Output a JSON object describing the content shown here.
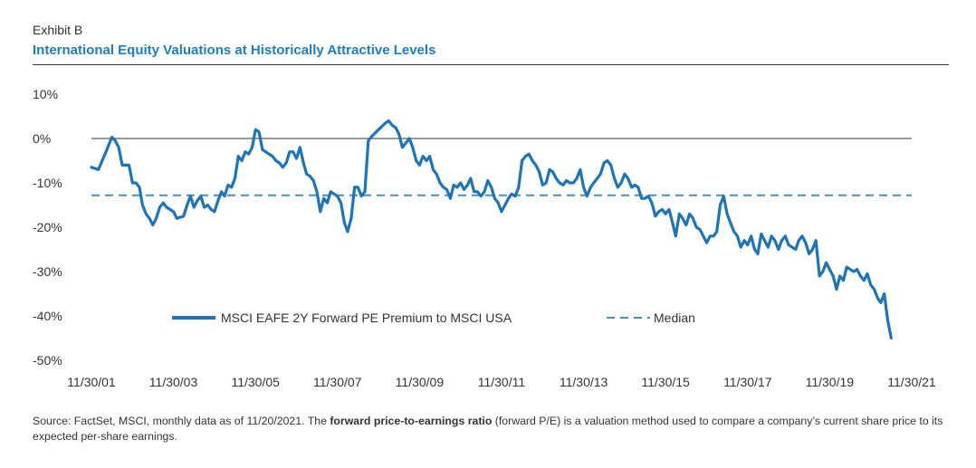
{
  "header": {
    "exhibit": "Exhibit B",
    "title": "International Equity Valuations at Historically Attractive Levels"
  },
  "footer": {
    "source_part1": "Source: FactSet, MSCI, monthly data as of 11/20/2021. The ",
    "source_bold": "forward price-to-earnings ratio",
    "source_part2": " (forward P/E) is a valuation method used to compare a company’s current share price to its expected per-share earnings."
  },
  "colors": {
    "series": "#1f74b8",
    "median": "#4a8fb5",
    "title": "#1f7cc0",
    "zero_line": "#333333"
  },
  "chart_data": {
    "type": "line",
    "title": "International Equity Valuations at Historically Attractive Levels",
    "x_axis": {
      "type": "date",
      "range": [
        "2001-11-30",
        "2021-11-30"
      ],
      "tick_values": [
        "2001-11-30",
        "2003-11-30",
        "2005-11-30",
        "2007-11-30",
        "2009-11-30",
        "2011-11-30",
        "2013-11-30",
        "2015-11-30",
        "2017-11-30",
        "2019-11-30",
        "2021-11-30"
      ],
      "tick_labels": [
        "11/30/01",
        "11/30/03",
        "11/30/05",
        "11/30/07",
        "11/30/09",
        "11/30/11",
        "11/30/13",
        "11/30/15",
        "11/30/17",
        "11/30/19",
        "11/30/21"
      ]
    },
    "y_axis": {
      "range": [
        -50,
        10
      ],
      "tick_values": [
        10,
        0,
        -10,
        -20,
        -30,
        -40,
        -50
      ],
      "tick_labels": [
        "10%",
        "0%",
        "-10%",
        "-20%",
        "-30%",
        "-40%",
        "-50%"
      ]
    },
    "grid": false,
    "legend_position": "bottom-center",
    "series": [
      {
        "name": "MSCI EAFE 2Y Forward PE Premium to MSCI USA",
        "style": "solid",
        "points": [
          [
            "2001-11-30",
            -6.5
          ],
          [
            "2002-01-31",
            -7
          ],
          [
            "2002-03-31",
            -3.5
          ],
          [
            "2002-05-31",
            0.3
          ],
          [
            "2002-06-30",
            -0.5
          ],
          [
            "2002-07-31",
            -2
          ],
          [
            "2002-08-31",
            -6
          ],
          [
            "2002-10-31",
            -6
          ],
          [
            "2002-11-30",
            -10
          ],
          [
            "2002-12-31",
            -10
          ],
          [
            "2003-01-31",
            -11
          ],
          [
            "2003-02-28",
            -15
          ],
          [
            "2003-03-31",
            -17
          ],
          [
            "2003-04-30",
            -18
          ],
          [
            "2003-05-31",
            -19.5
          ],
          [
            "2003-06-30",
            -18
          ],
          [
            "2003-07-31",
            -15.5
          ],
          [
            "2003-08-31",
            -14.5
          ],
          [
            "2003-09-30",
            -15.5
          ],
          [
            "2003-10-31",
            -16
          ],
          [
            "2003-11-30",
            -16.5
          ],
          [
            "2003-12-31",
            -18
          ],
          [
            "2004-02-28",
            -17.5
          ],
          [
            "2004-03-31",
            -15
          ],
          [
            "2004-04-30",
            -13
          ],
          [
            "2004-05-31",
            -15.5
          ],
          [
            "2004-06-30",
            -14
          ],
          [
            "2004-07-31",
            -13
          ],
          [
            "2004-08-31",
            -15.5
          ],
          [
            "2004-09-30",
            -15
          ],
          [
            "2004-10-31",
            -16
          ],
          [
            "2004-11-30",
            -16.5
          ],
          [
            "2004-12-31",
            -14
          ],
          [
            "2005-01-31",
            -12
          ],
          [
            "2005-02-28",
            -13
          ],
          [
            "2005-03-31",
            -10.5
          ],
          [
            "2005-04-30",
            -11
          ],
          [
            "2005-05-31",
            -9
          ],
          [
            "2005-06-30",
            -4
          ],
          [
            "2005-07-31",
            -5
          ],
          [
            "2005-08-31",
            -3
          ],
          [
            "2005-09-30",
            -3.5
          ],
          [
            "2005-10-31",
            -2
          ],
          [
            "2005-11-30",
            2
          ],
          [
            "2005-12-31",
            1.5
          ],
          [
            "2006-01-31",
            -2.5
          ],
          [
            "2006-02-28",
            -3
          ],
          [
            "2006-04-30",
            -4
          ],
          [
            "2006-05-31",
            -5
          ],
          [
            "2006-06-30",
            -5.5
          ],
          [
            "2006-07-31",
            -6.5
          ],
          [
            "2006-08-31",
            -5.5
          ],
          [
            "2006-09-30",
            -3
          ],
          [
            "2006-10-31",
            -3
          ],
          [
            "2006-11-30",
            -4.5
          ],
          [
            "2006-12-31",
            -2
          ],
          [
            "2007-01-31",
            -5.5
          ],
          [
            "2007-02-28",
            -8
          ],
          [
            "2007-03-31",
            -8.5
          ],
          [
            "2007-04-30",
            -9.5
          ],
          [
            "2007-05-31",
            -12
          ],
          [
            "2007-06-30",
            -16.5
          ],
          [
            "2007-07-31",
            -13.5
          ],
          [
            "2007-08-31",
            -14.5
          ],
          [
            "2007-09-30",
            -12
          ],
          [
            "2007-10-31",
            -12.5
          ],
          [
            "2007-11-30",
            -13
          ],
          [
            "2007-12-31",
            -14.5
          ],
          [
            "2008-01-31",
            -19
          ],
          [
            "2008-02-28",
            -21
          ],
          [
            "2008-03-31",
            -18
          ],
          [
            "2008-04-30",
            -11
          ],
          [
            "2008-05-31",
            -11
          ],
          [
            "2008-06-30",
            -13
          ],
          [
            "2008-07-31",
            -12
          ],
          [
            "2008-08-31",
            -0.5
          ],
          [
            "2008-09-30",
            0.5
          ],
          [
            "2008-11-30",
            2
          ],
          [
            "2009-01-31",
            3.5
          ],
          [
            "2009-02-28",
            4
          ],
          [
            "2009-03-31",
            3
          ],
          [
            "2009-04-30",
            2.5
          ],
          [
            "2009-05-31",
            1
          ],
          [
            "2009-06-30",
            -2
          ],
          [
            "2009-07-31",
            -1
          ],
          [
            "2009-08-31",
            0
          ],
          [
            "2009-09-30",
            -2
          ],
          [
            "2009-10-31",
            -5
          ],
          [
            "2009-11-30",
            -6
          ],
          [
            "2009-12-31",
            -4
          ],
          [
            "2010-01-31",
            -5
          ],
          [
            "2010-02-28",
            -4
          ],
          [
            "2010-03-31",
            -7
          ],
          [
            "2010-04-30",
            -8
          ],
          [
            "2010-05-31",
            -10
          ],
          [
            "2010-06-30",
            -11
          ],
          [
            "2010-07-31",
            -11.5
          ],
          [
            "2010-08-31",
            -13.5
          ],
          [
            "2010-09-30",
            -10.5
          ],
          [
            "2010-10-31",
            -11
          ],
          [
            "2010-11-30",
            -10
          ],
          [
            "2010-12-31",
            -11.5
          ],
          [
            "2011-01-31",
            -10.5
          ],
          [
            "2011-02-28",
            -9
          ],
          [
            "2011-03-31",
            -12
          ],
          [
            "2011-04-30",
            -12
          ],
          [
            "2011-05-31",
            -13
          ],
          [
            "2011-06-30",
            -12
          ],
          [
            "2011-07-31",
            -9.5
          ],
          [
            "2011-08-31",
            -11
          ],
          [
            "2011-09-30",
            -13.5
          ],
          [
            "2011-10-31",
            -14.5
          ],
          [
            "2011-11-30",
            -16.5
          ],
          [
            "2011-12-31",
            -15
          ],
          [
            "2012-01-31",
            -13.5
          ],
          [
            "2012-02-28",
            -12.5
          ],
          [
            "2012-03-31",
            -13
          ],
          [
            "2012-04-30",
            -11
          ],
          [
            "2012-05-31",
            -5
          ],
          [
            "2012-06-30",
            -4
          ],
          [
            "2012-07-31",
            -3.5
          ],
          [
            "2012-08-31",
            -5
          ],
          [
            "2012-09-30",
            -6
          ],
          [
            "2012-10-31",
            -7.5
          ],
          [
            "2012-11-30",
            -10.5
          ],
          [
            "2012-12-31",
            -10
          ],
          [
            "2013-01-31",
            -7
          ],
          [
            "2013-02-28",
            -7.5
          ],
          [
            "2013-03-31",
            -9
          ],
          [
            "2013-04-30",
            -10
          ],
          [
            "2013-05-31",
            -10.5
          ],
          [
            "2013-06-30",
            -9.5
          ],
          [
            "2013-07-31",
            -10
          ],
          [
            "2013-08-31",
            -10
          ],
          [
            "2013-09-30",
            -9
          ],
          [
            "2013-10-31",
            -7
          ],
          [
            "2013-11-30",
            -11
          ],
          [
            "2013-12-31",
            -13
          ],
          [
            "2014-01-31",
            -11
          ],
          [
            "2014-02-28",
            -10
          ],
          [
            "2014-03-31",
            -9
          ],
          [
            "2014-04-30",
            -8
          ],
          [
            "2014-05-31",
            -5.5
          ],
          [
            "2014-06-30",
            -5
          ],
          [
            "2014-07-31",
            -6
          ],
          [
            "2014-08-31",
            -9
          ],
          [
            "2014-09-30",
            -11
          ],
          [
            "2014-10-31",
            -10
          ],
          [
            "2014-11-30",
            -8
          ],
          [
            "2014-12-31",
            -9
          ],
          [
            "2015-01-31",
            -11
          ],
          [
            "2015-02-28",
            -10.5
          ],
          [
            "2015-03-31",
            -11
          ],
          [
            "2015-04-30",
            -13.5
          ],
          [
            "2015-05-31",
            -13.5
          ],
          [
            "2015-06-30",
            -13
          ],
          [
            "2015-07-31",
            -14.5
          ],
          [
            "2015-08-31",
            -17.5
          ],
          [
            "2015-09-30",
            -16.5
          ],
          [
            "2015-10-31",
            -16
          ],
          [
            "2015-11-30",
            -17
          ],
          [
            "2015-12-31",
            -16
          ],
          [
            "2016-01-31",
            -19
          ],
          [
            "2016-02-28",
            -22
          ],
          [
            "2016-03-31",
            -17
          ],
          [
            "2016-04-30",
            -18
          ],
          [
            "2016-05-31",
            -19.5
          ],
          [
            "2016-06-30",
            -17
          ],
          [
            "2016-07-31",
            -18
          ],
          [
            "2016-08-31",
            -20
          ],
          [
            "2016-09-30",
            -20.5
          ],
          [
            "2016-10-31",
            -22
          ],
          [
            "2016-11-30",
            -23.5
          ],
          [
            "2016-12-31",
            -22
          ],
          [
            "2017-01-31",
            -22
          ],
          [
            "2017-02-28",
            -21
          ],
          [
            "2017-03-31",
            -15
          ],
          [
            "2017-04-30",
            -13
          ],
          [
            "2017-05-31",
            -17
          ],
          [
            "2017-06-30",
            -19
          ],
          [
            "2017-07-31",
            -21
          ],
          [
            "2017-08-31",
            -22
          ],
          [
            "2017-09-30",
            -24.5
          ],
          [
            "2017-10-31",
            -23
          ],
          [
            "2017-11-30",
            -24
          ],
          [
            "2017-12-31",
            -22
          ],
          [
            "2018-01-31",
            -25
          ],
          [
            "2018-02-28",
            -26
          ],
          [
            "2018-03-31",
            -21.5
          ],
          [
            "2018-04-30",
            -23
          ],
          [
            "2018-05-31",
            -24.5
          ],
          [
            "2018-06-30",
            -22
          ],
          [
            "2018-07-31",
            -23
          ],
          [
            "2018-08-31",
            -25
          ],
          [
            "2018-09-30",
            -23
          ],
          [
            "2018-10-31",
            -22
          ],
          [
            "2018-11-30",
            -24
          ],
          [
            "2018-12-31",
            -24.5
          ],
          [
            "2019-01-31",
            -25
          ],
          [
            "2019-02-28",
            -23
          ],
          [
            "2019-03-31",
            -22
          ],
          [
            "2019-04-30",
            -23.5
          ],
          [
            "2019-05-31",
            -26
          ],
          [
            "2019-06-30",
            -25
          ],
          [
            "2019-07-31",
            -23
          ],
          [
            "2019-08-31",
            -31
          ],
          [
            "2019-09-30",
            -30
          ],
          [
            "2019-10-31",
            -28
          ],
          [
            "2019-11-30",
            -29.5
          ],
          [
            "2019-12-31",
            -31
          ],
          [
            "2020-01-31",
            -34
          ],
          [
            "2020-02-29",
            -31
          ],
          [
            "2020-03-31",
            -32
          ],
          [
            "2020-04-30",
            -29
          ],
          [
            "2020-05-31",
            -29.5
          ],
          [
            "2020-06-30",
            -30
          ],
          [
            "2020-07-31",
            -29.5
          ],
          [
            "2020-08-31",
            -31
          ],
          [
            "2020-09-30",
            -32
          ],
          [
            "2020-10-31",
            -30.5
          ],
          [
            "2020-11-30",
            -33
          ],
          [
            "2020-12-31",
            -34
          ],
          [
            "2021-01-31",
            -36
          ],
          [
            "2021-02-28",
            -37
          ],
          [
            "2021-03-31",
            -35
          ],
          [
            "2021-04-30",
            -41
          ],
          [
            "2021-05-31",
            -45
          ]
        ]
      },
      {
        "name": "Median",
        "style": "dashed",
        "points": [
          [
            "2001-11-30",
            -12.8
          ],
          [
            "2021-11-30",
            -12.8
          ]
        ]
      }
    ],
    "reference_lines": [
      {
        "y": 0,
        "style": "solid"
      }
    ]
  }
}
